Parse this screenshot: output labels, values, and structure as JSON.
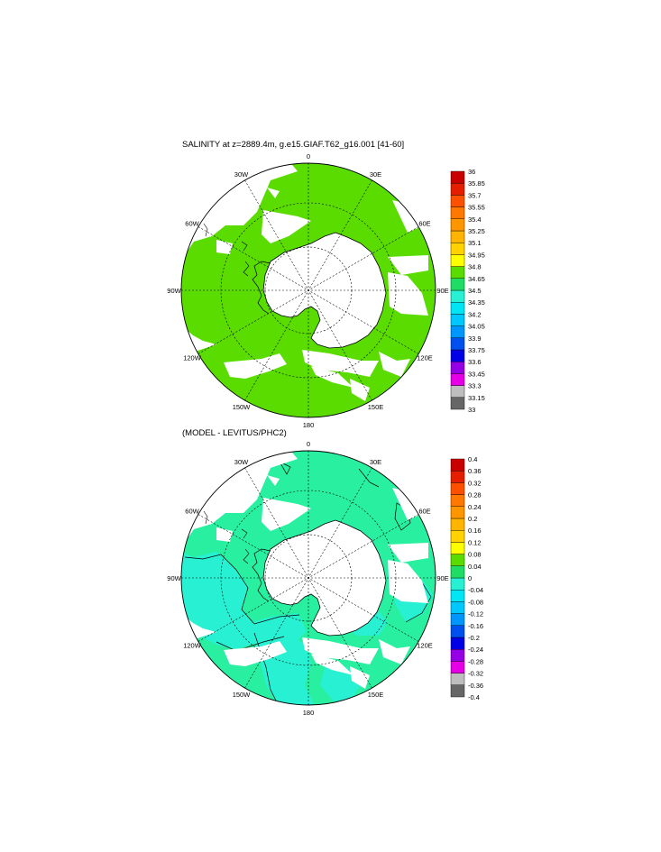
{
  "map1": {
    "title": "SALINITY at z=2889.4m, g.e15.GIAF.T62_g16.001 [41-60]",
    "lon_labels": [
      "0",
      "30E",
      "60E",
      "90E",
      "120E",
      "150E",
      "180",
      "150W",
      "120W",
      "90W",
      "60W",
      "30W"
    ],
    "colorbar": {
      "colors": [
        "#666666",
        "#bebebe",
        "#e600e6",
        "#9600e6",
        "#0000e6",
        "#0050f0",
        "#0096ff",
        "#00c8ff",
        "#00e6f5",
        "#28f0d2",
        "#1edc64",
        "#5adc00",
        "#ffff00",
        "#ffd200",
        "#ffb400",
        "#ff9600",
        "#ff7800",
        "#ff5000",
        "#e61e00",
        "#c80000"
      ],
      "labels": [
        "33.15",
        "33.3",
        "33.45",
        "33.6",
        "33.75",
        "33.9",
        "34.05",
        "34.2",
        "34.35",
        "34.5",
        "34.65",
        "34.8",
        "34.95",
        "35.1",
        "35.25",
        "35.4",
        "35.55",
        "35.7",
        "35.85",
        "36"
      ],
      "end_label": "33"
    },
    "fill_color": "#5adc00"
  },
  "map2": {
    "title": "(MODEL - LEVITUS/PHC2)",
    "lon_labels": [
      "0",
      "30E",
      "60E",
      "90E",
      "120E",
      "150E",
      "180",
      "150W",
      "120W",
      "90W",
      "60W",
      "30W"
    ],
    "colorbar": {
      "colors": [
        "#666666",
        "#bebebe",
        "#e600e6",
        "#9600e6",
        "#0000e6",
        "#0050f0",
        "#0096ff",
        "#00c8ff",
        "#00e6f5",
        "#28f0d2",
        "#1edc64",
        "#5adc00",
        "#ffff00",
        "#ffd200",
        "#ffb400",
        "#ff9600",
        "#ff7800",
        "#ff5000",
        "#e61e00",
        "#c80000"
      ],
      "labels": [
        "-0.36",
        "-0.32",
        "-0.28",
        "-0.24",
        "-0.2",
        "-0.16",
        "-0.12",
        "-0.08",
        "-0.04",
        "0",
        "0.04",
        "0.08",
        "0.12",
        "0.16",
        "0.2",
        "0.24",
        "0.28",
        "0.32",
        "0.36",
        "0.4"
      ],
      "end_label": "-0.4"
    },
    "fill_color": "#28f0a0",
    "anomaly_color": "#28f0d2"
  }
}
